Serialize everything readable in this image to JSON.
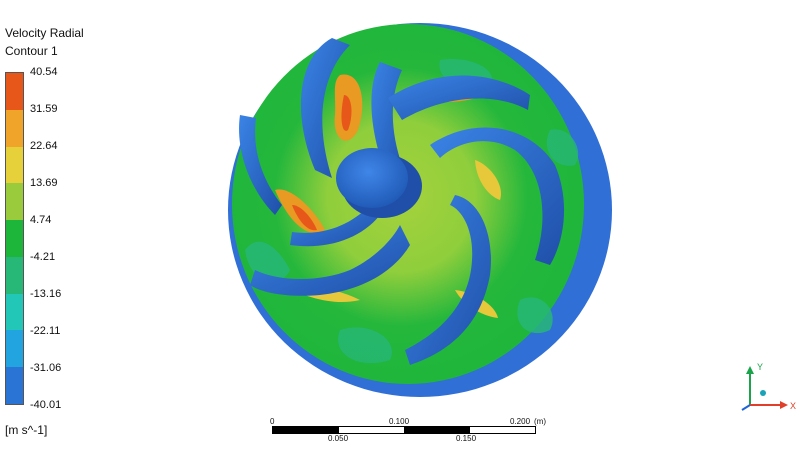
{
  "legend": {
    "title": "Velocity Radial",
    "subtitle": "Contour 1",
    "unit": "[m s^-1]",
    "ticks": [
      "40.54",
      "31.59",
      "22.64",
      "13.69",
      "4.74",
      "-4.21",
      "-13.16",
      "-22.11",
      "-31.06",
      "-40.01"
    ],
    "colors": [
      "#e8571a",
      "#f0a42a",
      "#e6d13a",
      "#9acb3c",
      "#1db63b",
      "#27b777",
      "#22c7b8",
      "#22a4e0",
      "#2a74d6",
      "#1f3fc4"
    ]
  },
  "scale": {
    "labels_top": [
      "0",
      "0.100",
      "0.200"
    ],
    "unit": "(m)",
    "labels_bottom": [
      "0.050",
      "0.150"
    ]
  },
  "triad": {
    "x_label": "X",
    "y_label": "Y",
    "x_color": "#e0402a",
    "y_color": "#1aa34a",
    "z_color": "#1f64d6"
  },
  "colors": {
    "blade": "#2f73d9",
    "blade_dark": "#2357b0",
    "field": "#1db63b",
    "field_light": "#7fcc3a",
    "hot": "#e8951e",
    "hotter": "#e8571a",
    "cool": "#27b777"
  }
}
